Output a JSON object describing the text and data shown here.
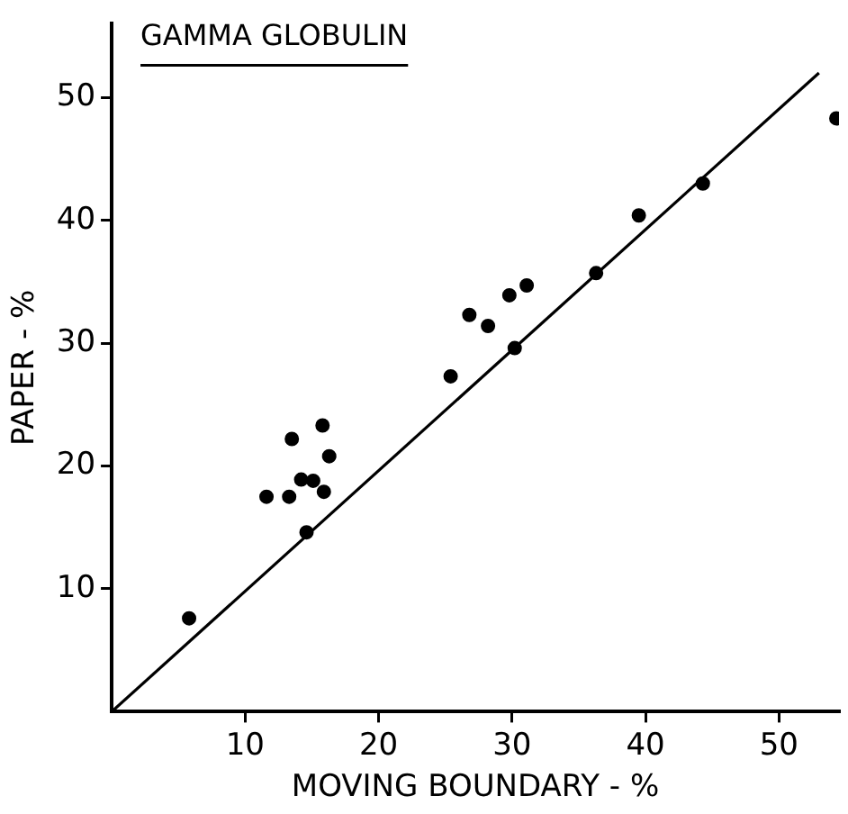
{
  "chart_data": {
    "type": "scatter",
    "title": "GAMMA GLOBULIN",
    "xlabel": "MOVING BOUNDARY - %",
    "ylabel": "PAPER - %",
    "xlim": [
      0,
      54.5
    ],
    "ylim": [
      0,
      56
    ],
    "xticks": [
      10,
      20,
      30,
      40,
      50
    ],
    "yticks": [
      10,
      20,
      30,
      40,
      50
    ],
    "grid": false,
    "legend": false,
    "marker": "circle",
    "series": [
      {
        "color": "#000000",
        "x": [
          5.8,
          11.6,
          13.3,
          13.5,
          14.6,
          14.2,
          15.1,
          15.9,
          15.8,
          16.3,
          25.4,
          26.8,
          28.2,
          29.8,
          31.1,
          30.2,
          36.3,
          39.5,
          44.3,
          54.3
        ],
        "values": [
          7.6,
          17.5,
          17.5,
          22.2,
          14.6,
          18.9,
          18.8,
          17.9,
          23.3,
          20.8,
          27.3,
          32.3,
          31.4,
          33.9,
          34.7,
          29.6,
          35.7,
          40.4,
          43.0,
          48.3
        ]
      },
      {
        "type": "line",
        "color": "#000000",
        "marker": "none",
        "line_style": "solid",
        "x": [
          0,
          53
        ],
        "values": [
          0,
          52
        ]
      }
    ]
  }
}
